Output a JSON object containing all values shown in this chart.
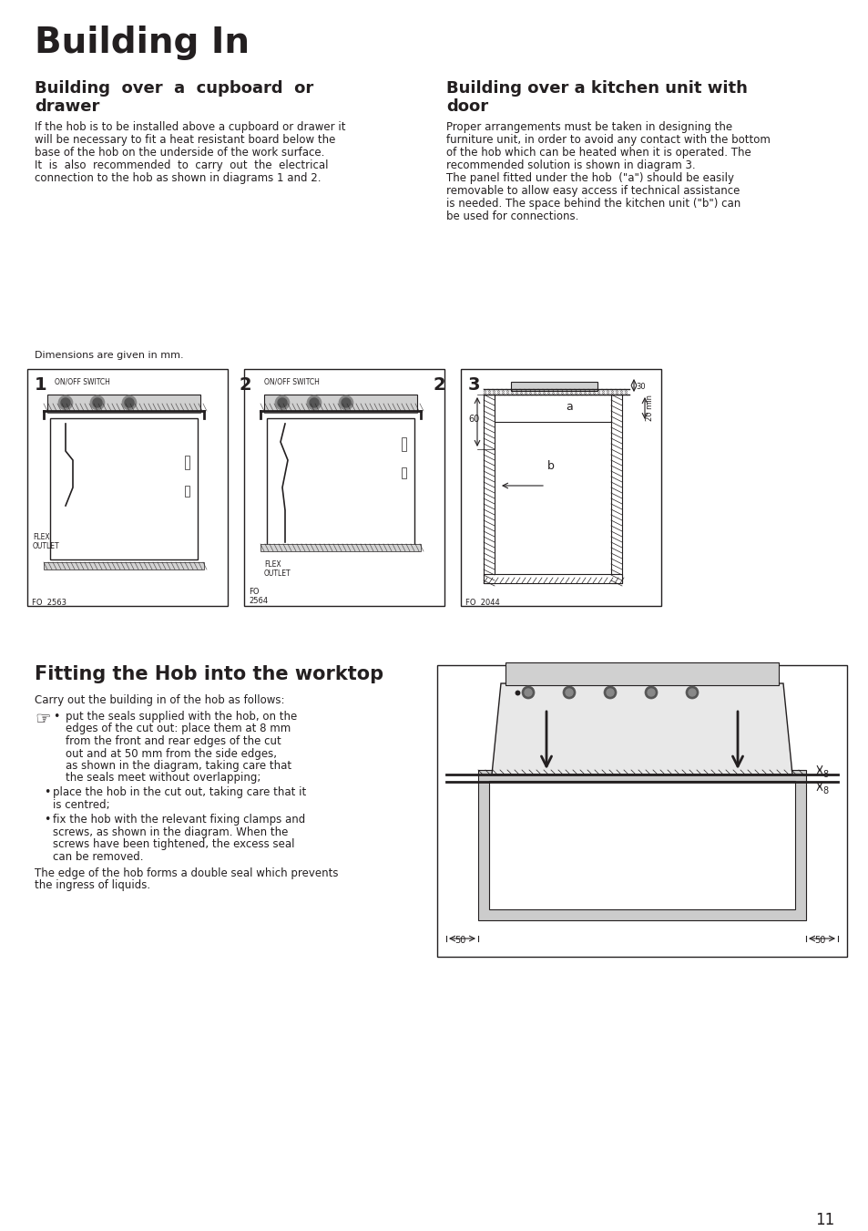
{
  "title": "Building In",
  "section1_title": "Building  over  a  cupboard  or\ndrawer",
  "section2_title": "Building over a kitchen unit with\ndoor",
  "section1_body": "If the hob is to be installed above a cupboard or drawer it\nwill be necessary to fit a heat resistant board below the\nbase of the hob on the underside of the work surface.\nIt  is  also  recommended  to  carry  out  the  electrical\nconnection to the hob as shown in diagrams 1 and 2.",
  "section2_body": "Proper arrangements must be taken in designing the\nfurniture unit, in order to avoid any contact with the bottom\nof the hob which can be heated when it is operated. The\nrecommended solution is shown in diagram 3.\nThe panel fitted under the hob  (\"a\") should be easily\nremovable to allow easy access if technical assistance\nis needed. The space behind the kitchen unit (\"b\") can\nbe used for connections.",
  "dim_note": "Dimensions are given in mm.",
  "section3_title": "Fitting the Hob into the worktop",
  "section3_intro": "Carry out the building in of the hob as follows:",
  "bullet1": "put the seals supplied with the hob, on the\nedges of the cut out: place them at 8 mm\nfrom the front and rear edges of the cut\nout and at 50 mm from the side edges,\nas shown in the diagram, taking care that\nthe seals meet without overlapping;",
  "bullet2": "place the hob in the cut out, taking care that it\nis centred;",
  "bullet3": "fix the hob with the relevant fixing clamps and\nscrews, as shown in the diagram. When the\nscrews have been tightened, the excess seal\ncan be removed.",
  "footer_text": "The edge of the hob forms a double seal which prevents\nthe ingress of liquids.",
  "page_number": "11",
  "bg_color": "#ffffff",
  "text_color": "#231f20",
  "diagram_color": "#231f20"
}
